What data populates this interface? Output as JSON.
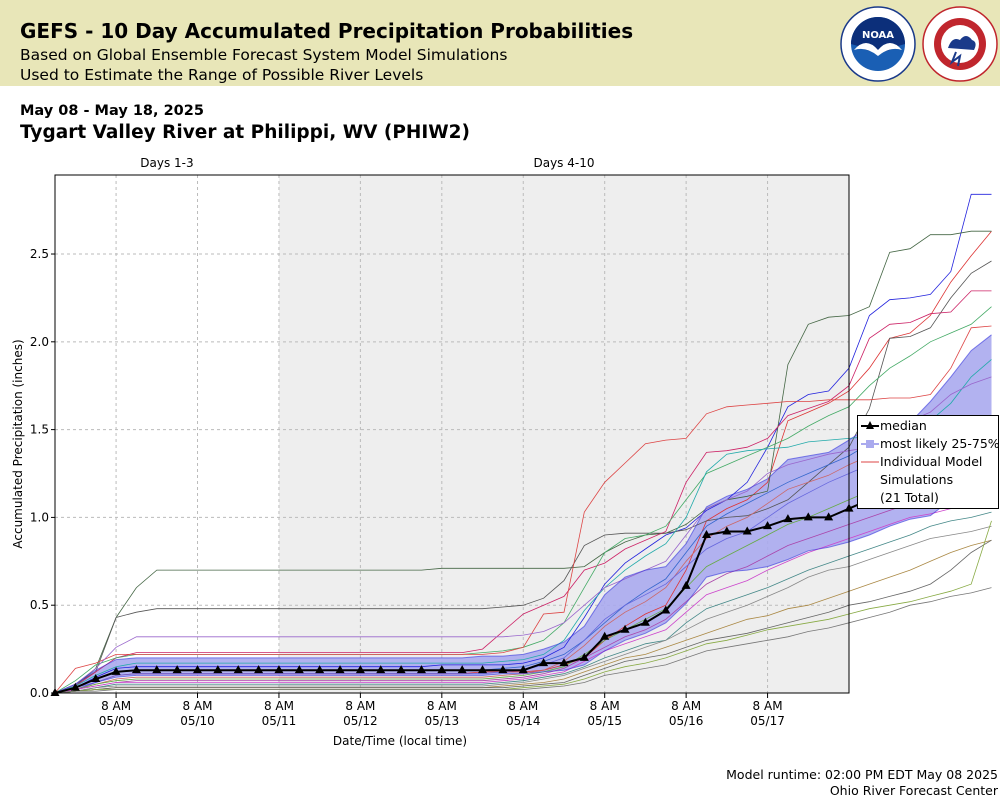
{
  "header": {
    "title": "GEFS - 10 Day Accumulated Precipitation Probabilities",
    "subtitle1": "Based on Global Ensemble Forecast System Model Simulations",
    "subtitle2": "Used to Estimate the Range of Possible River Levels"
  },
  "date_range": "May 08 - May 18, 2025",
  "station": "Tygart Valley River at Philippi, WV (PHIW2)",
  "logos": {
    "noara": "NOAA",
    "nws": "NATIONAL WEATHER SERVICE",
    "noaa_ring_text": "NATIONAL OCEANIC AND ATMOSPHERIC ADMINISTRATION"
  },
  "footer": {
    "runtime": "Model runtime: 02:00 PM EDT May 08 2025",
    "center": "Ohio River Forecast Center"
  },
  "legend": {
    "median": "median",
    "band": "most likely 25-75%",
    "individual_line1": "Individual Model",
    "individual_line2": "Simulations",
    "individual_line3": "(21 Total)"
  },
  "chart_data": {
    "type": "line",
    "xlabel": "Date/Time (local time)",
    "ylabel": "Accumulated Precipitation (inches)",
    "ylim": [
      0,
      2.95
    ],
    "yticks": [
      "0.0",
      "0.5",
      "1.0",
      "1.5",
      "2.0",
      "2.5"
    ],
    "xlim_hours": [
      0,
      234
    ],
    "period_labels": [
      "Days 1-3",
      "Days 4-10"
    ],
    "period_split_hours": 66,
    "x_ticks": [
      {
        "top": "8 AM",
        "bottom": "05/09"
      },
      {
        "top": "8 AM",
        "bottom": "05/10"
      },
      {
        "top": "8 AM",
        "bottom": "05/11"
      },
      {
        "top": "8 AM",
        "bottom": "05/12"
      },
      {
        "top": "8 AM",
        "bottom": "05/13"
      },
      {
        "top": "8 AM",
        "bottom": "05/14"
      },
      {
        "top": "8 AM",
        "bottom": "05/15"
      },
      {
        "top": "8 AM",
        "bottom": "05/16"
      },
      {
        "top": "8 AM",
        "bottom": "05/17"
      }
    ],
    "x_step_hours": 6,
    "grid": true,
    "legend_position": "right",
    "colors": {
      "median": "#000000",
      "band": "#aaaaee",
      "band_edge": "#3333dd",
      "days_4_10_bg": "#eeeeee"
    },
    "median": [
      0.0,
      0.03,
      0.08,
      0.12,
      0.13,
      0.13,
      0.13,
      0.13,
      0.13,
      0.13,
      0.13,
      0.13,
      0.13,
      0.13,
      0.13,
      0.13,
      0.13,
      0.13,
      0.13,
      0.13,
      0.13,
      0.13,
      0.13,
      0.13,
      0.17,
      0.17,
      0.2,
      0.32,
      0.36,
      0.4,
      0.47,
      0.61,
      0.9,
      0.92,
      0.92,
      0.95,
      0.99,
      1.0,
      1.0,
      1.05,
      1.1,
      1.21,
      1.28,
      1.28,
      1.37,
      1.39,
      1.43
    ],
    "p25": [
      0.0,
      0.03,
      0.06,
      0.09,
      0.1,
      0.1,
      0.1,
      0.1,
      0.1,
      0.1,
      0.1,
      0.1,
      0.1,
      0.1,
      0.1,
      0.1,
      0.1,
      0.1,
      0.1,
      0.1,
      0.1,
      0.1,
      0.11,
      0.11,
      0.12,
      0.13,
      0.16,
      0.24,
      0.3,
      0.34,
      0.4,
      0.51,
      0.66,
      0.69,
      0.7,
      0.72,
      0.76,
      0.81,
      0.83,
      0.86,
      0.9,
      0.95,
      0.99,
      1.01,
      1.1,
      1.14,
      1.17
    ],
    "p75": [
      0.0,
      0.05,
      0.13,
      0.19,
      0.2,
      0.2,
      0.2,
      0.2,
      0.2,
      0.2,
      0.2,
      0.2,
      0.2,
      0.2,
      0.2,
      0.2,
      0.2,
      0.2,
      0.2,
      0.2,
      0.2,
      0.21,
      0.21,
      0.22,
      0.25,
      0.29,
      0.38,
      0.56,
      0.66,
      0.7,
      0.72,
      0.85,
      1.06,
      1.12,
      1.16,
      1.22,
      1.33,
      1.35,
      1.37,
      1.44,
      1.52,
      1.54,
      1.54,
      1.66,
      1.8,
      1.95,
      2.04
    ],
    "members": [
      [
        0.0,
        0.03,
        0.09,
        0.14,
        0.15,
        0.15,
        0.15,
        0.15,
        0.15,
        0.15,
        0.15,
        0.15,
        0.15,
        0.15,
        0.15,
        0.15,
        0.15,
        0.15,
        0.15,
        0.16,
        0.16,
        0.16,
        0.16,
        0.17,
        0.2,
        0.26,
        0.43,
        0.62,
        0.74,
        0.82,
        0.9,
        0.94,
        1.04,
        1.1,
        1.2,
        1.4,
        1.63,
        1.7,
        1.72,
        1.85,
        2.15,
        2.24,
        2.25,
        2.27,
        2.4,
        2.84,
        2.84
      ],
      [
        0.0,
        0.02,
        0.06,
        0.1,
        0.11,
        0.11,
        0.11,
        0.11,
        0.11,
        0.11,
        0.11,
        0.11,
        0.11,
        0.11,
        0.11,
        0.11,
        0.11,
        0.11,
        0.11,
        0.11,
        0.11,
        0.12,
        0.12,
        0.12,
        0.13,
        0.16,
        0.2,
        0.3,
        0.38,
        0.45,
        0.5,
        0.7,
        0.98,
        1.05,
        1.1,
        1.2,
        1.55,
        1.6,
        1.65,
        1.72,
        1.85,
        2.02,
        2.05,
        2.15,
        2.34,
        2.49,
        2.63
      ],
      [
        0.0,
        0.04,
        0.14,
        0.43,
        0.6,
        0.7,
        0.7,
        0.7,
        0.7,
        0.7,
        0.7,
        0.7,
        0.7,
        0.7,
        0.7,
        0.7,
        0.7,
        0.7,
        0.7,
        0.71,
        0.71,
        0.71,
        0.71,
        0.71,
        0.71,
        0.71,
        0.72,
        0.8,
        0.86,
        0.9,
        0.91,
        0.96,
        1.05,
        1.1,
        1.12,
        1.15,
        1.87,
        2.1,
        2.14,
        2.15,
        2.2,
        2.51,
        2.53,
        2.61,
        2.61,
        2.63,
        2.63
      ],
      [
        0.0,
        0.05,
        0.12,
        0.43,
        0.46,
        0.48,
        0.48,
        0.48,
        0.48,
        0.48,
        0.48,
        0.48,
        0.48,
        0.48,
        0.48,
        0.48,
        0.48,
        0.48,
        0.48,
        0.48,
        0.48,
        0.48,
        0.49,
        0.5,
        0.54,
        0.64,
        0.84,
        0.9,
        0.91,
        0.91,
        0.91,
        0.93,
        0.98,
        1.0,
        1.01,
        1.05,
        1.1,
        1.2,
        1.3,
        1.4,
        1.62,
        2.02,
        2.03,
        2.08,
        2.25,
        2.39,
        2.46
      ],
      [
        0.0,
        0.04,
        0.12,
        0.2,
        0.23,
        0.23,
        0.23,
        0.23,
        0.23,
        0.23,
        0.23,
        0.23,
        0.23,
        0.23,
        0.23,
        0.23,
        0.23,
        0.23,
        0.23,
        0.23,
        0.23,
        0.25,
        0.35,
        0.45,
        0.5,
        0.55,
        0.7,
        0.74,
        0.82,
        0.87,
        0.92,
        1.2,
        1.37,
        1.38,
        1.4,
        1.45,
        1.58,
        1.62,
        1.66,
        1.75,
        2.02,
        2.1,
        2.11,
        2.16,
        2.17,
        2.29,
        2.29
      ],
      [
        0.0,
        0.07,
        0.16,
        0.2,
        0.22,
        0.22,
        0.22,
        0.22,
        0.22,
        0.22,
        0.22,
        0.22,
        0.22,
        0.22,
        0.22,
        0.22,
        0.22,
        0.22,
        0.22,
        0.22,
        0.22,
        0.23,
        0.24,
        0.26,
        0.3,
        0.4,
        0.6,
        0.8,
        0.88,
        0.9,
        0.95,
        1.1,
        1.25,
        1.3,
        1.35,
        1.4,
        1.45,
        1.52,
        1.58,
        1.63,
        1.75,
        1.85,
        1.92,
        2.0,
        2.05,
        2.1,
        2.2
      ],
      [
        0.0,
        0.14,
        0.17,
        0.22,
        0.22,
        0.22,
        0.22,
        0.22,
        0.22,
        0.22,
        0.22,
        0.22,
        0.22,
        0.22,
        0.22,
        0.22,
        0.22,
        0.22,
        0.22,
        0.22,
        0.22,
        0.22,
        0.23,
        0.26,
        0.45,
        0.46,
        1.03,
        1.2,
        1.31,
        1.42,
        1.44,
        1.45,
        1.59,
        1.63,
        1.64,
        1.65,
        1.66,
        1.66,
        1.67,
        1.67,
        1.67,
        1.68,
        1.68,
        1.7,
        1.85,
        2.08,
        2.09
      ],
      [
        0.0,
        0.04,
        0.1,
        0.15,
        0.17,
        0.17,
        0.17,
        0.17,
        0.17,
        0.17,
        0.17,
        0.17,
        0.17,
        0.17,
        0.17,
        0.17,
        0.17,
        0.17,
        0.17,
        0.17,
        0.17,
        0.17,
        0.18,
        0.19,
        0.22,
        0.3,
        0.47,
        0.6,
        0.7,
        0.78,
        0.85,
        1.0,
        1.26,
        1.36,
        1.38,
        1.39,
        1.4,
        1.43,
        1.44,
        1.45,
        1.46,
        1.48,
        1.5,
        1.55,
        1.65,
        1.8,
        1.9
      ],
      [
        0.0,
        0.05,
        0.14,
        0.26,
        0.32,
        0.32,
        0.32,
        0.32,
        0.32,
        0.32,
        0.32,
        0.32,
        0.32,
        0.32,
        0.32,
        0.32,
        0.32,
        0.32,
        0.32,
        0.32,
        0.32,
        0.32,
        0.32,
        0.33,
        0.35,
        0.4,
        0.5,
        0.6,
        0.65,
        0.7,
        0.75,
        0.9,
        1.05,
        1.1,
        1.15,
        1.25,
        1.3,
        1.33,
        1.36,
        1.38,
        1.4,
        1.48,
        1.55,
        1.6,
        1.7,
        1.76,
        1.8
      ],
      [
        0.0,
        0.03,
        0.08,
        0.12,
        0.13,
        0.13,
        0.13,
        0.13,
        0.13,
        0.13,
        0.13,
        0.13,
        0.13,
        0.13,
        0.13,
        0.13,
        0.13,
        0.13,
        0.13,
        0.13,
        0.13,
        0.13,
        0.14,
        0.15,
        0.18,
        0.22,
        0.3,
        0.4,
        0.5,
        0.58,
        0.65,
        0.8,
        0.95,
        1.02,
        1.08,
        1.14,
        1.2,
        1.25,
        1.3,
        1.35,
        1.42,
        1.46,
        1.5,
        1.53,
        1.55,
        1.56,
        1.57
      ],
      [
        0.0,
        0.02,
        0.05,
        0.08,
        0.09,
        0.09,
        0.09,
        0.09,
        0.09,
        0.09,
        0.09,
        0.09,
        0.09,
        0.09,
        0.09,
        0.09,
        0.09,
        0.09,
        0.09,
        0.09,
        0.09,
        0.09,
        0.1,
        0.11,
        0.13,
        0.18,
        0.27,
        0.38,
        0.46,
        0.52,
        0.6,
        0.75,
        0.88,
        0.95,
        1.0,
        1.08,
        1.16,
        1.2,
        1.24,
        1.3,
        1.35,
        1.4,
        1.44,
        1.47,
        1.5,
        1.52,
        1.54
      ],
      [
        0.0,
        0.02,
        0.06,
        0.1,
        0.11,
        0.11,
        0.11,
        0.11,
        0.11,
        0.11,
        0.11,
        0.11,
        0.11,
        0.11,
        0.11,
        0.11,
        0.11,
        0.11,
        0.11,
        0.11,
        0.11,
        0.11,
        0.12,
        0.13,
        0.16,
        0.2,
        0.3,
        0.42,
        0.5,
        0.56,
        0.62,
        0.72,
        0.82,
        0.88,
        0.92,
        1.0,
        1.08,
        1.14,
        1.2,
        1.25,
        1.3,
        1.33,
        1.36,
        1.4,
        1.42,
        1.45,
        1.48
      ],
      [
        0.0,
        0.02,
        0.05,
        0.07,
        0.08,
        0.08,
        0.08,
        0.08,
        0.08,
        0.08,
        0.08,
        0.08,
        0.08,
        0.08,
        0.08,
        0.08,
        0.08,
        0.08,
        0.08,
        0.08,
        0.08,
        0.08,
        0.09,
        0.1,
        0.12,
        0.15,
        0.22,
        0.3,
        0.36,
        0.42,
        0.48,
        0.6,
        0.72,
        0.78,
        0.84,
        0.9,
        0.96,
        1.0,
        1.05,
        1.1,
        1.15,
        1.18,
        1.22,
        1.25,
        1.28,
        1.3,
        1.32
      ],
      [
        0.0,
        0.02,
        0.04,
        0.06,
        0.07,
        0.07,
        0.07,
        0.07,
        0.07,
        0.07,
        0.07,
        0.07,
        0.07,
        0.07,
        0.07,
        0.07,
        0.07,
        0.07,
        0.07,
        0.07,
        0.07,
        0.07,
        0.08,
        0.09,
        0.11,
        0.14,
        0.2,
        0.26,
        0.32,
        0.36,
        0.42,
        0.52,
        0.62,
        0.68,
        0.72,
        0.78,
        0.84,
        0.88,
        0.92,
        0.96,
        1.0,
        1.04,
        1.08,
        1.1,
        1.14,
        1.17,
        1.2
      ],
      [
        0.0,
        0.02,
        0.04,
        0.06,
        0.06,
        0.06,
        0.06,
        0.06,
        0.06,
        0.06,
        0.06,
        0.06,
        0.06,
        0.06,
        0.06,
        0.06,
        0.06,
        0.06,
        0.06,
        0.06,
        0.06,
        0.06,
        0.07,
        0.08,
        0.1,
        0.12,
        0.18,
        0.24,
        0.28,
        0.32,
        0.36,
        0.46,
        0.56,
        0.6,
        0.64,
        0.7,
        0.75,
        0.8,
        0.84,
        0.88,
        0.92,
        0.96,
        1.0,
        1.02,
        1.05,
        1.07,
        1.1
      ],
      [
        0.0,
        0.01,
        0.03,
        0.05,
        0.05,
        0.05,
        0.05,
        0.05,
        0.05,
        0.05,
        0.05,
        0.05,
        0.05,
        0.05,
        0.05,
        0.05,
        0.05,
        0.05,
        0.05,
        0.05,
        0.05,
        0.05,
        0.06,
        0.07,
        0.09,
        0.11,
        0.15,
        0.2,
        0.24,
        0.28,
        0.3,
        0.4,
        0.48,
        0.52,
        0.56,
        0.6,
        0.65,
        0.7,
        0.74,
        0.78,
        0.82,
        0.86,
        0.9,
        0.95,
        0.98,
        1.0,
        1.03
      ],
      [
        0.0,
        0.01,
        0.03,
        0.04,
        0.04,
        0.04,
        0.04,
        0.04,
        0.04,
        0.04,
        0.04,
        0.04,
        0.04,
        0.04,
        0.04,
        0.04,
        0.04,
        0.04,
        0.04,
        0.04,
        0.04,
        0.04,
        0.05,
        0.06,
        0.08,
        0.1,
        0.14,
        0.18,
        0.22,
        0.26,
        0.3,
        0.36,
        0.42,
        0.46,
        0.5,
        0.55,
        0.6,
        0.66,
        0.7,
        0.72,
        0.76,
        0.8,
        0.84,
        0.88,
        0.9,
        0.92,
        0.95
      ],
      [
        0.0,
        0.01,
        0.02,
        0.03,
        0.03,
        0.03,
        0.03,
        0.03,
        0.03,
        0.03,
        0.03,
        0.03,
        0.03,
        0.03,
        0.03,
        0.03,
        0.03,
        0.03,
        0.03,
        0.03,
        0.03,
        0.03,
        0.04,
        0.05,
        0.06,
        0.08,
        0.12,
        0.16,
        0.2,
        0.22,
        0.26,
        0.3,
        0.34,
        0.38,
        0.42,
        0.44,
        0.48,
        0.5,
        0.54,
        0.58,
        0.62,
        0.66,
        0.7,
        0.75,
        0.8,
        0.84,
        0.87
      ],
      [
        0.0,
        0.01,
        0.02,
        0.03,
        0.03,
        0.03,
        0.03,
        0.03,
        0.03,
        0.03,
        0.03,
        0.03,
        0.03,
        0.03,
        0.03,
        0.03,
        0.03,
        0.03,
        0.03,
        0.03,
        0.03,
        0.03,
        0.03,
        0.04,
        0.05,
        0.06,
        0.1,
        0.14,
        0.18,
        0.2,
        0.22,
        0.26,
        0.3,
        0.32,
        0.34,
        0.37,
        0.4,
        0.43,
        0.46,
        0.5,
        0.52,
        0.55,
        0.58,
        0.62,
        0.7,
        0.8,
        0.87
      ],
      [
        0.0,
        0.01,
        0.02,
        0.02,
        0.02,
        0.02,
        0.02,
        0.02,
        0.02,
        0.02,
        0.02,
        0.02,
        0.02,
        0.02,
        0.02,
        0.02,
        0.02,
        0.02,
        0.02,
        0.02,
        0.02,
        0.02,
        0.02,
        0.03,
        0.04,
        0.05,
        0.08,
        0.12,
        0.15,
        0.17,
        0.2,
        0.24,
        0.28,
        0.3,
        0.33,
        0.36,
        0.38,
        0.4,
        0.42,
        0.45,
        0.48,
        0.5,
        0.52,
        0.55,
        0.58,
        0.62,
        0.98
      ],
      [
        0.0,
        0.01,
        0.01,
        0.02,
        0.02,
        0.02,
        0.02,
        0.02,
        0.02,
        0.02,
        0.02,
        0.02,
        0.02,
        0.02,
        0.02,
        0.02,
        0.02,
        0.02,
        0.02,
        0.02,
        0.02,
        0.02,
        0.02,
        0.02,
        0.03,
        0.04,
        0.06,
        0.1,
        0.12,
        0.14,
        0.16,
        0.2,
        0.24,
        0.26,
        0.28,
        0.3,
        0.32,
        0.35,
        0.37,
        0.4,
        0.43,
        0.46,
        0.5,
        0.52,
        0.55,
        0.57,
        0.6
      ]
    ],
    "member_colors": [
      "#2222dd",
      "#dd3333",
      "#446644",
      "#555555",
      "#cc2266",
      "#44aa66",
      "#dd4444",
      "#22aaaa",
      "#9966cc",
      "#3366cc",
      "#cc6666",
      "#6666dd",
      "#66aa44",
      "#aa44aa",
      "#cc44cc",
      "#448888",
      "#888888",
      "#aa8844",
      "#666666",
      "#88aa44",
      "#777777"
    ]
  }
}
